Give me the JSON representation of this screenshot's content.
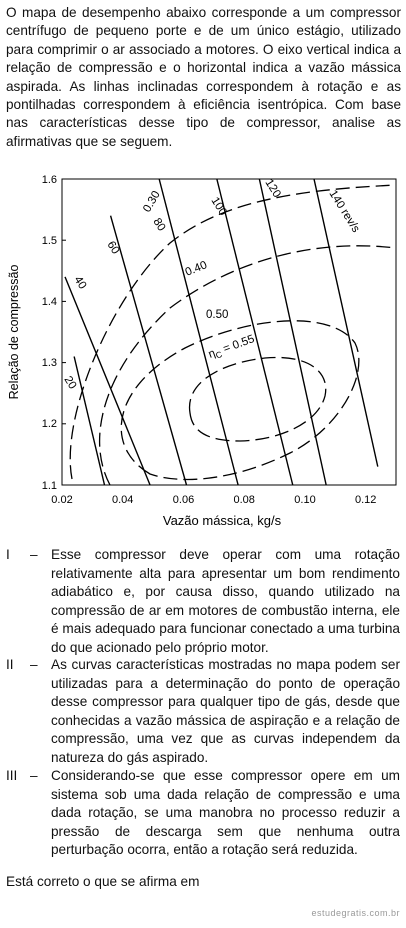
{
  "intro": "O mapa de desempenho abaixo corresponde a um compressor centrífugo de pequeno porte e de um único estágio, utilizado para comprimir o ar associado a motores. O eixo vertical indica a relação de compressão e o horizontal indica a vazão mássica aspirada. As linhas inclinadas correspondem à rotação e as pontilhadas correspondem à eficiência isentrópica. Com base nas características desse tipo de compressor, analise as afirmativas que se seguem.",
  "chart_data": {
    "type": "line",
    "xlabel": "Vazão mássica, kg/s",
    "ylabel": "Relação de compressão",
    "xlim": [
      0.02,
      0.13
    ],
    "ylim": [
      1.1,
      1.6
    ],
    "x_ticks": [
      "0.02",
      "0.04",
      "0.06",
      "0.08",
      "0.10",
      "0.12"
    ],
    "y_ticks": [
      "1.1",
      "1.2",
      "1.3",
      "1.4",
      "1.5",
      "1.6"
    ],
    "speed_lines": [
      {
        "label": "20",
        "points": [
          [
            0.024,
            1.31
          ],
          [
            0.034,
            1.1
          ]
        ]
      },
      {
        "label": "40",
        "points": [
          [
            0.021,
            1.44
          ],
          [
            0.049,
            1.1
          ]
        ]
      },
      {
        "label": "60",
        "points": [
          [
            0.036,
            1.54
          ],
          [
            0.061,
            1.1
          ]
        ]
      },
      {
        "label": "80",
        "points": [
          [
            0.052,
            1.6
          ],
          [
            0.078,
            1.1
          ]
        ]
      },
      {
        "label": "100",
        "points": [
          [
            0.071,
            1.6
          ],
          [
            0.096,
            1.1
          ]
        ]
      },
      {
        "label": "120",
        "points": [
          [
            0.085,
            1.6
          ],
          [
            0.107,
            1.1
          ]
        ]
      },
      {
        "label": "140 rev/s",
        "points": [
          [
            0.103,
            1.6
          ],
          [
            0.124,
            1.13
          ]
        ]
      }
    ],
    "efficiency_labels": [
      "0.30",
      "0.40",
      "0.50",
      "0.55"
    ],
    "efficiency_prefix": "η",
    "efficiency_subscript": "C",
    "efficiency_eq": " = "
  },
  "statements": [
    {
      "num": "I",
      "dash": "–",
      "text": "Esse compressor deve operar com uma rotação relativamente alta para apresentar um bom rendimento adiabático e, por causa disso, quando utilizado na compressão de ar em motores de combustão interna, ele é mais adequado para funcionar conectado a uma turbina do que acionado pelo próprio motor."
    },
    {
      "num": "II",
      "dash": "–",
      "text": "As curvas características mostradas no mapa podem ser utilizadas para a determinação do ponto de operação desse compressor para qualquer tipo de gás, desde que conhecidas a vazão mássica de aspiração e a relação de compressão, uma vez que as curvas independem da natureza do gás aspirado."
    },
    {
      "num": "III",
      "dash": "–",
      "text": "Considerando-se que esse compressor opere em um sistema sob uma dada relação de compressão e uma dada rotação, se uma manobra no processo reduzir a pressão de descarga sem que nenhuma outra perturbação ocorra, então a rotação será reduzida."
    }
  ],
  "closing": "Está correto o que se afirma em",
  "watermark": "estudegratis.com.br"
}
